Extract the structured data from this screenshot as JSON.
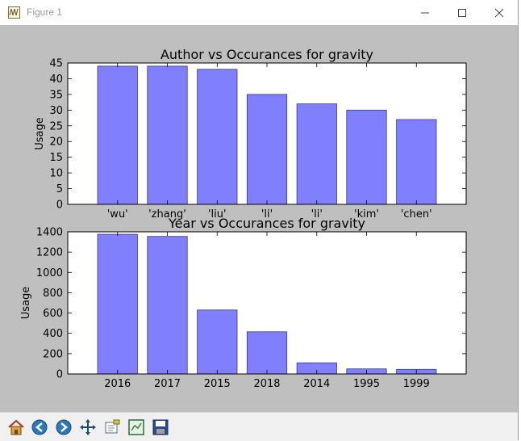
{
  "window": {
    "title": "Figure 1",
    "background": "#bfbfbf"
  },
  "toolbar": {
    "buttons": [
      "home-icon",
      "back-icon",
      "forward-icon",
      "pan-icon",
      "zoom-icon",
      "subplots-icon",
      "save-icon"
    ]
  },
  "colors": {
    "bar_fill": "#8080ff",
    "bar_edge": "#3a3a7a",
    "axes_bg": "#ffffff"
  },
  "chart_data": [
    {
      "type": "bar",
      "title": "Author vs Occurances for gravity",
      "xlabel": "",
      "ylabel": "Usage",
      "categories": [
        "'wu'",
        "'zhang'",
        "'liu'",
        "'li'",
        "'li'",
        "'kim'",
        "'chen'"
      ],
      "values": [
        44,
        44,
        43,
        35,
        32,
        30,
        27
      ],
      "ylim": [
        0,
        45
      ],
      "yticks": [
        0,
        5,
        10,
        15,
        20,
        25,
        30,
        35,
        40,
        45
      ],
      "grid": false
    },
    {
      "type": "bar",
      "title": "Year vs Occurances for gravity",
      "xlabel": "",
      "ylabel": "Usage",
      "categories": [
        "2016",
        "2017",
        "2015",
        "2018",
        "2014",
        "1995",
        "1999"
      ],
      "values": [
        1375,
        1355,
        630,
        415,
        110,
        50,
        45
      ],
      "ylim": [
        0,
        1400
      ],
      "yticks": [
        0,
        200,
        400,
        600,
        800,
        1000,
        1200,
        1400
      ],
      "grid": false
    }
  ]
}
